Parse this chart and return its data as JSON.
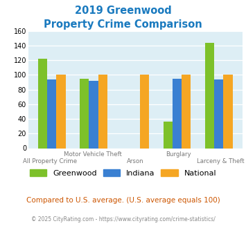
{
  "title_line1": "2019 Greenwood",
  "title_line2": "Property Crime Comparison",
  "title_color": "#1a7abf",
  "greenwood": [
    122,
    95,
    0,
    36,
    144
  ],
  "indiana": [
    94,
    92,
    0,
    95,
    94
  ],
  "national": [
    100,
    100,
    100,
    100,
    100
  ],
  "greenwood_color": "#7dc12a",
  "indiana_color": "#3a80d2",
  "national_color": "#f5a623",
  "plot_bg_color": "#ddeef5",
  "ylim": [
    0,
    160
  ],
  "yticks": [
    0,
    20,
    40,
    60,
    80,
    100,
    120,
    140,
    160
  ],
  "bar_width": 0.22,
  "top_xlabels": [
    [
      1,
      "Motor Vehicle Theft"
    ],
    [
      3,
      "Burglary"
    ]
  ],
  "bot_xlabels": [
    [
      0,
      "All Property Crime"
    ],
    [
      2,
      "Arson"
    ],
    [
      4,
      "Larceny & Theft"
    ]
  ],
  "footer_text": "Compared to U.S. average. (U.S. average equals 100)",
  "footer_color": "#cc5500",
  "copyright_text": "© 2025 CityRating.com - https://www.cityrating.com/crime-statistics/",
  "copyright_color": "#888888",
  "legend_labels": [
    "Greenwood",
    "Indiana",
    "National"
  ]
}
